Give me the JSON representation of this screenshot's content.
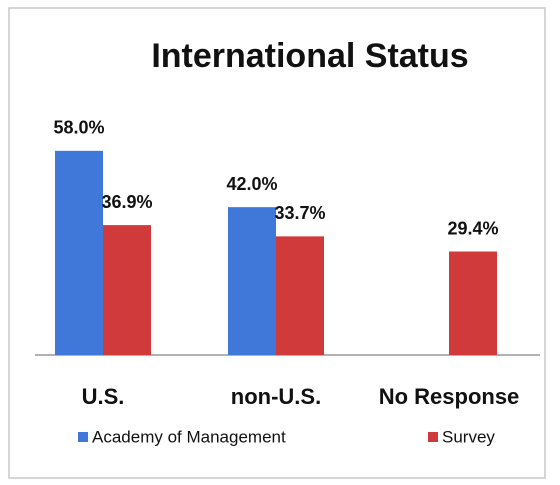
{
  "chart_data": {
    "type": "bar",
    "title": "International Status",
    "categories": [
      "U.S.",
      "non-U.S.",
      "No Response"
    ],
    "series": [
      {
        "name": "Academy of Management",
        "color": "#3f78d8",
        "values": [
          58.0,
          42.0,
          null
        ],
        "value_labels": [
          "58.0%",
          "42.0%",
          null
        ]
      },
      {
        "name": "Survey",
        "color": "#d03a3a",
        "values": [
          36.9,
          33.7,
          29.4
        ],
        "value_labels": [
          "36.9%",
          "33.7%",
          "29.4%"
        ]
      }
    ],
    "legend": "bottom"
  }
}
